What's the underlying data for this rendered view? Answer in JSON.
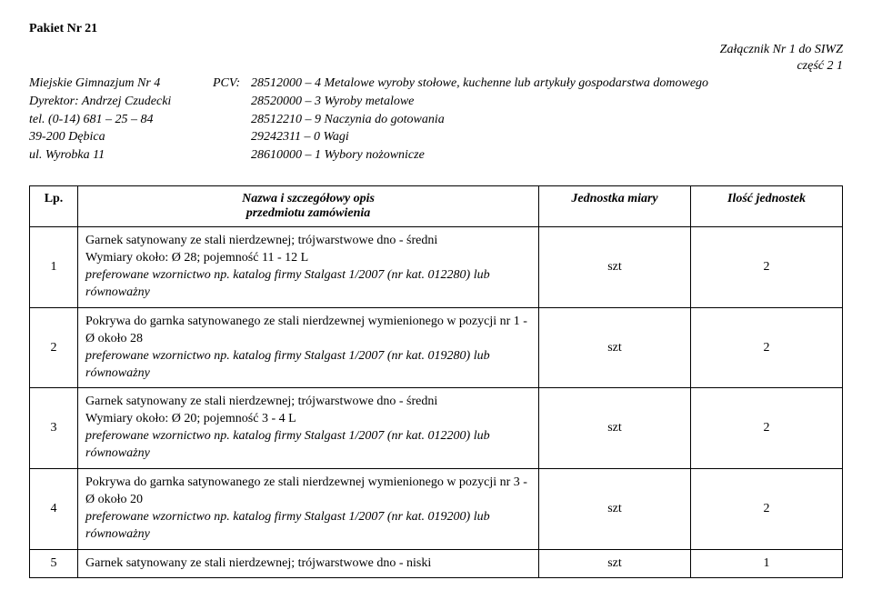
{
  "header": {
    "pakiet": "Pakiet Nr 21",
    "attach_line1": "Załącznik Nr 1 do SIWZ",
    "attach_line2": "część 2 1",
    "org_lines": [
      "Miejskie Gimnazjum Nr 4",
      "Dyrektor: Andrzej Czudecki",
      "tel. (0-14) 681 – 25 – 84",
      "39-200 Dębica",
      "ul. Wyrobka 11"
    ],
    "pcv_label": "PCV:",
    "pcv_lines": [
      "28512000 – 4 Metalowe wyroby stołowe, kuchenne lub artykuły gospodarstwa domowego",
      "28520000 – 3 Wyroby metalowe",
      "28512210 – 9 Naczynia do gotowania",
      "29242311 – 0 Wagi",
      "28610000 – 1 Wybory nożownicze"
    ]
  },
  "table": {
    "headers": {
      "lp": "Lp.",
      "name_l1": "Nazwa i szczegółowy opis",
      "name_l2": "przedmiotu zamówienia",
      "unit": "Jednostka miary",
      "qty": "Ilość jednostek"
    },
    "rows": [
      {
        "lp": "1",
        "l1": "Garnek satynowany ze stali nierdzewnej; trójwarstwowe dno - średni",
        "l2": "Wymiary około: Ø 28; pojemność 11 - 12 L",
        "l3": "preferowane wzornictwo np. katalog firmy Stalgast 1/2007 (nr kat. 012280) lub równoważny",
        "unit": "szt",
        "qty": "2"
      },
      {
        "lp": "2",
        "l1": "Pokrywa do garnka satynowanego ze stali nierdzewnej wymienionego w pozycji nr 1 - Ø około 28",
        "l2": "",
        "l3": "preferowane wzornictwo np. katalog firmy Stalgast 1/2007 (nr kat. 019280) lub równoważny",
        "unit": "szt",
        "qty": "2"
      },
      {
        "lp": "3",
        "l1": "Garnek satynowany ze stali nierdzewnej; trójwarstwowe dno - średni",
        "l2": "Wymiary około: Ø 20; pojemność 3 - 4 L",
        "l3": "preferowane wzornictwo np. katalog firmy Stalgast 1/2007 (nr kat. 012200) lub równoważny",
        "unit": "szt",
        "qty": "2"
      },
      {
        "lp": "4",
        "l1": "Pokrywa do garnka satynowanego ze stali nierdzewnej wymienionego w pozycji nr 3 - Ø około 20",
        "l2": "",
        "l3": "preferowane wzornictwo np. katalog firmy Stalgast 1/2007 (nr kat. 019200) lub równoważny",
        "unit": "szt",
        "qty": "2"
      },
      {
        "lp": "5",
        "l1": "Garnek satynowany ze stali nierdzewnej; trójwarstwowe dno - niski",
        "l2": "",
        "l3": "",
        "unit": "szt",
        "qty": "1"
      }
    ]
  }
}
